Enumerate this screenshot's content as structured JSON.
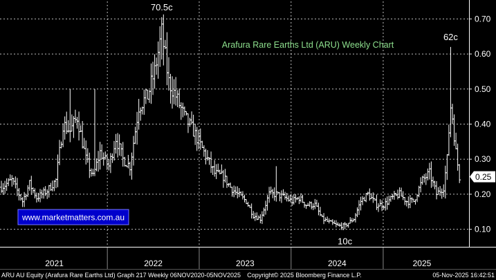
{
  "chart_data": {
    "type": "ohlc",
    "title": "Arafura Rare Earths Ltd (ARU) Weekly Chart",
    "ylim": [
      0.05,
      0.75
    ],
    "y_ticks": [
      "0.10",
      "0.20",
      "0.30",
      "0.40",
      "0.50",
      "0.60",
      "0.70"
    ],
    "x_years": [
      "2021",
      "2022",
      "2023",
      "2024",
      "2025"
    ],
    "last_price": "0.25",
    "website": "www.marketmatters.com.au",
    "annotations": [
      {
        "text": "70.5c",
        "date": "2022-08-05",
        "value": 0.705
      },
      {
        "text": "62c",
        "date": "2025-09-26",
        "value": 0.62
      },
      {
        "text": "10c",
        "date": "2024-08-02",
        "value": 0.1
      }
    ],
    "series": [
      {
        "date_range": [
          "2020-11-06",
          "2025-11-05"
        ],
        "close_knots": [
          [
            "2020-11-06",
            0.22
          ],
          [
            "2020-12-18",
            0.24
          ],
          [
            "2021-01-29",
            0.18
          ],
          [
            "2021-02-26",
            0.23
          ],
          [
            "2021-03-26",
            0.19
          ],
          [
            "2021-05-07",
            0.21
          ],
          [
            "2021-06-11",
            0.24
          ],
          [
            "2021-07-09",
            0.4
          ],
          [
            "2021-08-06",
            0.38
          ],
          [
            "2021-09-03",
            0.42
          ],
          [
            "2021-10-08",
            0.3
          ],
          [
            "2021-11-05",
            0.25
          ],
          [
            "2021-12-03",
            0.32
          ],
          [
            "2022-01-07",
            0.28
          ],
          [
            "2022-02-04",
            0.36
          ],
          [
            "2022-03-04",
            0.3
          ],
          [
            "2022-04-01",
            0.28
          ],
          [
            "2022-05-06",
            0.45
          ],
          [
            "2022-06-10",
            0.48
          ],
          [
            "2022-07-08",
            0.55
          ],
          [
            "2022-08-05",
            0.66
          ],
          [
            "2022-09-02",
            0.52
          ],
          [
            "2022-09-30",
            0.48
          ],
          [
            "2022-11-04",
            0.42
          ],
          [
            "2022-12-09",
            0.38
          ],
          [
            "2023-01-06",
            0.34
          ],
          [
            "2023-02-03",
            0.3
          ],
          [
            "2023-03-03",
            0.26
          ],
          [
            "2023-04-07",
            0.25
          ],
          [
            "2023-05-05",
            0.22
          ],
          [
            "2023-06-02",
            0.2
          ],
          [
            "2023-07-07",
            0.18
          ],
          [
            "2023-08-04",
            0.14
          ],
          [
            "2023-09-01",
            0.13
          ],
          [
            "2023-10-06",
            0.2
          ],
          [
            "2023-11-03",
            0.2
          ],
          [
            "2023-12-08",
            0.19
          ],
          [
            "2024-01-05",
            0.18
          ],
          [
            "2024-02-02",
            0.19
          ],
          [
            "2024-03-01",
            0.17
          ],
          [
            "2024-04-05",
            0.17
          ],
          [
            "2024-05-03",
            0.13
          ],
          [
            "2024-05-31",
            0.12
          ],
          [
            "2024-07-05",
            0.11
          ],
          [
            "2024-08-02",
            0.11
          ],
          [
            "2024-09-06",
            0.13
          ],
          [
            "2024-10-04",
            0.18
          ],
          [
            "2024-11-01",
            0.2
          ],
          [
            "2024-12-06",
            0.17
          ],
          [
            "2025-01-03",
            0.17
          ],
          [
            "2025-02-07",
            0.19
          ],
          [
            "2025-03-07",
            0.2
          ],
          [
            "2025-04-04",
            0.18
          ],
          [
            "2025-05-02",
            0.18
          ],
          [
            "2025-06-06",
            0.24
          ],
          [
            "2025-07-04",
            0.26
          ],
          [
            "2025-08-01",
            0.2
          ],
          [
            "2025-08-29",
            0.22
          ],
          [
            "2025-09-05",
            0.26
          ],
          [
            "2025-09-12",
            0.3
          ],
          [
            "2025-09-19",
            0.38
          ],
          [
            "2025-09-26",
            0.45
          ],
          [
            "2025-10-03",
            0.42
          ],
          [
            "2025-10-17",
            0.32
          ],
          [
            "2025-10-31",
            0.25
          ]
        ],
        "spikes": [
          [
            "2021-08-06",
            0.5
          ],
          [
            "2021-11-12",
            0.5
          ],
          [
            "2023-11-03",
            0.28
          ],
          [
            "2022-08-05",
            0.705
          ],
          [
            "2025-09-26",
            0.62
          ],
          [
            "2024-08-02",
            0.1
          ]
        ]
      }
    ],
    "grid": true,
    "legend": "none",
    "colors": {
      "background": "#000000",
      "bars": "#ffffff",
      "grid": "#ffffff",
      "title": "#8ee08e",
      "website_box": "#0000cc",
      "tag_bg": "#ffffff",
      "tag_text": "#000000"
    }
  },
  "footer": {
    "left": "ARU AU Equity (Arafura Rare Earths Ltd) Graph 217 Weekly 06NOV2020-05NOV2025",
    "center": "Copyright© 2025 Bloomberg Finance L.P.",
    "right": "05-Nov-2025 16:42:51"
  }
}
